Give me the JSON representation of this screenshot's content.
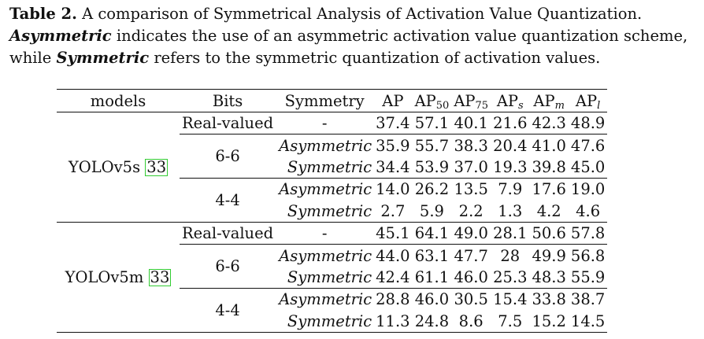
{
  "caption": {
    "label": "Table 2.",
    "line1_rest": " A comparison of Symmetrical Analysis of Activation Value Quantization.",
    "term_asym": "Asymmetric",
    "line2_rest": " indicates the use of an asymmetric activation value quantization scheme,",
    "line3_pre": "while ",
    "term_sym": "Symmetric",
    "line3_rest": " refers to the symmetric quantization of activation values."
  },
  "header": {
    "models": "models",
    "bits": "Bits",
    "symmetry": "Symmetry",
    "ap": "AP",
    "ap50": {
      "base": "AP",
      "sub": "50"
    },
    "ap75": {
      "base": "AP",
      "sub": "75"
    },
    "aps": {
      "base": "AP",
      "sub": "s"
    },
    "apm": {
      "base": "AP",
      "sub": "m"
    },
    "apl": {
      "base": "AP",
      "sub": "l"
    }
  },
  "models": [
    {
      "name": "YOLOv5s",
      "ref": "33",
      "real": {
        "bits": "Real-valued",
        "symmetry": "-",
        "values": [
          "37.4",
          "57.1",
          "40.1",
          "21.6",
          "42.3",
          "48.9"
        ]
      },
      "groups": [
        {
          "bits": "6-6",
          "rows": [
            {
              "symmetry": "Asymmetric",
              "values": [
                "35.9",
                "55.7",
                "38.3",
                "20.4",
                "41.0",
                "47.6"
              ]
            },
            {
              "symmetry": "Symmetric",
              "values": [
                "34.4",
                "53.9",
                "37.0",
                "19.3",
                "39.8",
                "45.0"
              ]
            }
          ]
        },
        {
          "bits": "4-4",
          "rows": [
            {
              "symmetry": "Asymmetric",
              "values": [
                "14.0",
                "26.2",
                "13.5",
                "7.9",
                "17.6",
                "19.0"
              ]
            },
            {
              "symmetry": "Symmetric",
              "values": [
                "2.7",
                "5.9",
                "2.2",
                "1.3",
                "4.2",
                "4.6"
              ]
            }
          ]
        }
      ]
    },
    {
      "name": "YOLOv5m",
      "ref": "33",
      "real": {
        "bits": "Real-valued",
        "symmetry": "-",
        "values": [
          "45.1",
          "64.1",
          "49.0",
          "28.1",
          "50.6",
          "57.8"
        ]
      },
      "groups": [
        {
          "bits": "6-6",
          "rows": [
            {
              "symmetry": "Asymmetric",
              "values": [
                "44.0",
                "63.1",
                "47.7",
                "28",
                "49.9",
                "56.8"
              ]
            },
            {
              "symmetry": "Symmetric",
              "values": [
                "42.4",
                "61.1",
                "46.0",
                "25.3",
                "48.3",
                "55.9"
              ]
            }
          ]
        },
        {
          "bits": "4-4",
          "rows": [
            {
              "symmetry": "Asymmetric",
              "values": [
                "28.8",
                "46.0",
                "30.5",
                "15.4",
                "33.8",
                "38.7"
              ]
            },
            {
              "symmetry": "Symmetric",
              "values": [
                "11.3",
                "24.8",
                "8.6",
                "7.5",
                "15.2",
                "14.5"
              ]
            }
          ]
        }
      ]
    }
  ]
}
